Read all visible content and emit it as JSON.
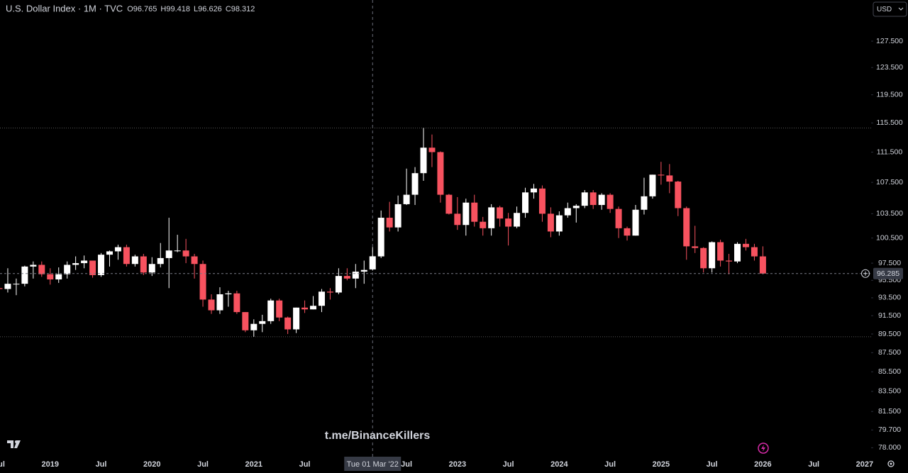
{
  "chart_data": {
    "type": "candlestick",
    "title": "U.S. Dollar Index · 1M · TVC",
    "ohlc_labels": [
      "O",
      "H",
      "L",
      "C"
    ],
    "hover_index_label": "Tue 01 Mar '22",
    "currency": "USD",
    "watermark": "t.me/BinanceKillers",
    "log_scale": true,
    "up_color": "#ffffff",
    "down_color": "#f7525f",
    "categories": [
      "Jul",
      null,
      null,
      null,
      null,
      null,
      "2019",
      null,
      null,
      null,
      null,
      null,
      "Jul",
      null,
      null,
      null,
      null,
      null,
      "2020",
      null,
      null,
      null,
      null,
      null,
      "Jul",
      null,
      null,
      null,
      null,
      null,
      "2021",
      null,
      null,
      null,
      null,
      null,
      "Jul",
      null,
      null,
      null,
      null,
      null,
      null,
      null,
      null,
      null,
      null,
      null,
      "Jul",
      null,
      null,
      null,
      null,
      null,
      "2023",
      null,
      null,
      null,
      null,
      null,
      "Jul",
      null,
      null,
      null,
      null,
      null,
      "2024",
      null,
      null,
      null,
      null,
      null,
      "Jul",
      null,
      null,
      null,
      null,
      null,
      "2025",
      null,
      null,
      null,
      null,
      null,
      "Jul",
      null,
      null,
      null,
      null,
      null,
      "2026",
      null,
      null,
      null,
      null,
      null,
      "Jul",
      null,
      null,
      null,
      null,
      null,
      "2027"
    ],
    "open": [
      94.6,
      94.5,
      95.1,
      95.1,
      97.1,
      97.3,
      96.2,
      95.6,
      96.2,
      97.3,
      97.5,
      97.8,
      96.1,
      98.5,
      98.9,
      99.4,
      97.4,
      98.3,
      96.4,
      97.4,
      98.1,
      99.0,
      99.0,
      98.3,
      97.4,
      93.3,
      92.1,
      93.9,
      94.0,
      91.9,
      89.9,
      90.6,
      90.9,
      93.2,
      91.3,
      90.0,
      92.4,
      92.2,
      92.6,
      94.2,
      94.1,
      96.0,
      95.7,
      96.5,
      96.765,
      98.3,
      103.0,
      101.8,
      104.7,
      105.9,
      108.7,
      112.1,
      111.5,
      105.9,
      103.5,
      102.1,
      104.9,
      102.5,
      101.7,
      104.3,
      102.9,
      101.9,
      103.6,
      106.2,
      106.7,
      103.5,
      101.3,
      103.3,
      104.2,
      104.5,
      106.2,
      104.6,
      105.9,
      104.1,
      101.7,
      100.8,
      104.0,
      105.7,
      108.5,
      108.4,
      107.6,
      104.2,
      99.5,
      99.3,
      96.9,
      100.0,
      97.8,
      97.7,
      99.8,
      99.4,
      98.3,
      null,
      null,
      null,
      null,
      null,
      null,
      null,
      null,
      null,
      null,
      null,
      null
    ],
    "high": [
      95.2,
      96.9,
      95.7,
      97.2,
      97.7,
      97.7,
      96.9,
      97.0,
      97.7,
      98.3,
      98.4,
      97.8,
      98.7,
      99.0,
      99.7,
      99.7,
      98.5,
      98.6,
      98.2,
      99.9,
      103.0,
      100.9,
      100.4,
      98.6,
      97.8,
      93.9,
      94.7,
      94.3,
      94.3,
      91.9,
      91.1,
      91.6,
      93.4,
      93.4,
      91.4,
      92.4,
      93.2,
      93.7,
      94.5,
      94.6,
      96.9,
      96.9,
      97.4,
      97.8,
      99.418,
      103.9,
      105.0,
      105.8,
      109.3,
      109.5,
      114.8,
      113.9,
      111.6,
      106.0,
      105.6,
      105.4,
      105.9,
      103.1,
      104.7,
      104.5,
      103.6,
      104.4,
      106.8,
      107.3,
      107.1,
      104.3,
      103.8,
      104.9,
      104.7,
      106.5,
      106.5,
      106.1,
      106.1,
      104.4,
      101.9,
      104.6,
      108.1,
      108.5,
      110.2,
      109.9,
      107.7,
      104.4,
      102.0,
      99.4,
      100.1,
      100.3,
      98.6,
      100.0,
      100.4,
      99.8,
      99.5,
      null,
      null,
      null,
      null,
      null,
      null,
      null,
      null,
      null,
      null,
      null,
      null
    ],
    "low": [
      93.7,
      94.1,
      93.8,
      94.8,
      95.7,
      95.9,
      95.0,
      95.2,
      95.7,
      96.7,
      96.9,
      95.8,
      95.9,
      97.1,
      97.9,
      97.1,
      97.1,
      96.1,
      96.0,
      97.0,
      94.6,
      98.8,
      97.5,
      95.7,
      92.5,
      91.7,
      91.7,
      92.5,
      91.7,
      89.7,
      89.2,
      89.7,
      90.6,
      90.9,
      89.5,
      89.6,
      91.8,
      92.2,
      91.9,
      93.3,
      93.9,
      95.5,
      94.6,
      95.1,
      96.626,
      98.1,
      101.3,
      101.3,
      104.6,
      104.6,
      107.7,
      109.5,
      104.9,
      103.4,
      101.5,
      100.8,
      101.9,
      100.8,
      100.8,
      101.9,
      99.6,
      101.7,
      103.0,
      105.4,
      102.5,
      100.6,
      100.8,
      103.0,
      102.4,
      104.2,
      104.1,
      104.0,
      103.6,
      100.5,
      100.2,
      100.8,
      103.4,
      105.4,
      107.2,
      106.1,
      103.2,
      97.9,
      98.7,
      96.4,
      96.4,
      97.1,
      96.2,
      97.5,
      99.0,
      97.8,
      96.2,
      null,
      null,
      null,
      null,
      null,
      null,
      null,
      null,
      null,
      null,
      null,
      null
    ],
    "close": [
      94.5,
      95.1,
      95.1,
      97.1,
      97.3,
      96.2,
      95.6,
      96.2,
      97.3,
      97.5,
      97.8,
      96.1,
      98.5,
      98.9,
      99.4,
      97.4,
      98.3,
      96.4,
      97.4,
      98.1,
      99.0,
      99.0,
      98.3,
      97.4,
      93.3,
      92.1,
      93.9,
      94.0,
      91.9,
      89.9,
      90.6,
      90.9,
      93.2,
      91.3,
      90.0,
      92.4,
      92.2,
      92.6,
      94.2,
      94.1,
      96.0,
      95.7,
      96.5,
      96.7,
      98.312,
      103.0,
      101.8,
      104.7,
      105.9,
      108.7,
      112.1,
      111.5,
      105.9,
      103.5,
      102.1,
      104.9,
      102.5,
      101.7,
      104.3,
      102.9,
      101.9,
      103.6,
      106.2,
      106.7,
      103.5,
      101.3,
      103.3,
      104.2,
      104.5,
      106.2,
      104.6,
      105.9,
      104.1,
      101.7,
      100.8,
      104.0,
      105.7,
      108.5,
      108.4,
      107.6,
      104.2,
      99.5,
      99.3,
      96.9,
      100.0,
      97.8,
      97.7,
      99.8,
      99.4,
      98.3,
      96.285,
      null,
      null,
      null,
      null,
      null,
      null,
      null,
      null,
      null,
      null,
      null,
      null
    ],
    "ylim": [
      77.1,
      134.0
    ],
    "yticks": [
      {
        "value": 127.5,
        "label": "127.500"
      },
      {
        "value": 123.5,
        "label": "123.500"
      },
      {
        "value": 119.5,
        "label": "119.500"
      },
      {
        "value": 115.5,
        "label": "115.500"
      },
      {
        "value": 111.5,
        "label": "111.500"
      },
      {
        "value": 107.5,
        "label": "107.500"
      },
      {
        "value": 103.5,
        "label": "103.500"
      },
      {
        "value": 100.5,
        "label": "100.500"
      },
      {
        "value": 97.5,
        "label": "97.500"
      },
      {
        "value": 95.5,
        "label": "95.500"
      },
      {
        "value": 93.5,
        "label": "93.500"
      },
      {
        "value": 91.5,
        "label": "91.500"
      },
      {
        "value": 89.5,
        "label": "89.500"
      },
      {
        "value": 87.5,
        "label": "87.500"
      },
      {
        "value": 85.5,
        "label": "85.500"
      },
      {
        "value": 83.5,
        "label": "83.500"
      },
      {
        "value": 81.5,
        "label": "81.500"
      },
      {
        "value": 79.7,
        "label": "79.700"
      },
      {
        "value": 78.0,
        "label": "78.000"
      }
    ]
  }
}
